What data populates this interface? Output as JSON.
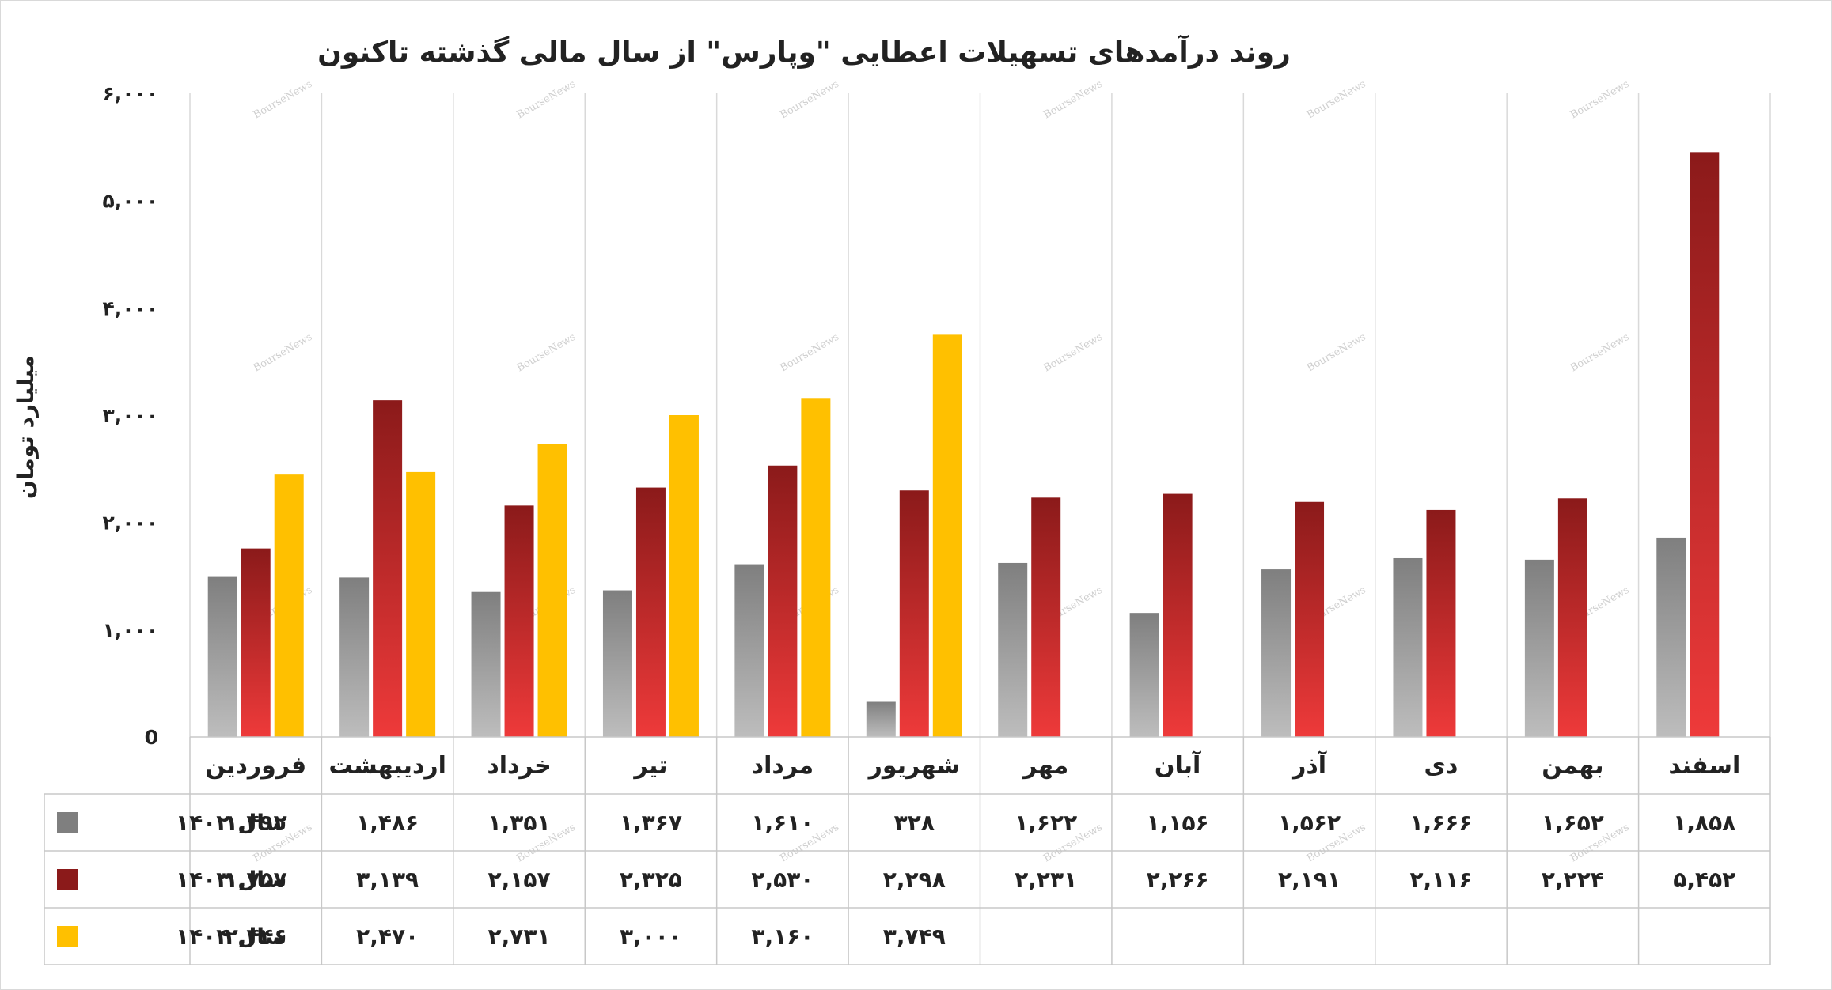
{
  "chart_data": {
    "type": "bar",
    "title": "روند درآمدهای تسهیلات اعطایی \"وپارس\" از سال مالی گذشته تاکنون",
    "ylabel": "میلیارد تومان",
    "xlabel": "",
    "ylim": [
      0,
      6000
    ],
    "yticks": [
      0,
      1000,
      2000,
      3000,
      4000,
      5000,
      6000
    ],
    "ytick_labels": [
      "0",
      "۱,۰۰۰",
      "۲,۰۰۰",
      "۳,۰۰۰",
      "۴,۰۰۰",
      "۵,۰۰۰",
      "۶,۰۰۰"
    ],
    "grid": true,
    "watermark": "BourseNews",
    "categories": [
      "فروردین",
      "اردیبهشت",
      "خرداد",
      "تیر",
      "مرداد",
      "شهریور",
      "مهر",
      "آبان",
      "آذر",
      "دی",
      "بهمن",
      "اسفند"
    ],
    "series": [
      {
        "name": "سال ۱۴۰۲",
        "color": "#7f7f7f",
        "color_light": "#bdbdbd",
        "values": [
          1492,
          1486,
          1351,
          1367,
          1610,
          328,
          1622,
          1156,
          1562,
          1666,
          1652,
          1858
        ],
        "labels": [
          "۱,۴۹۲",
          "۱,۴۸۶",
          "۱,۳۵۱",
          "۱,۳۶۷",
          "۱,۶۱۰",
          "۳۲۸",
          "۱,۶۲۲",
          "۱,۱۵۶",
          "۱,۵۶۲",
          "۱,۶۶۶",
          "۱,۶۵۲",
          "۱,۸۵۸"
        ]
      },
      {
        "name": "سال ۱۴۰۳",
        "color": "#8b1a1a",
        "color_light": "#ee3a3a",
        "values": [
          1757,
          3139,
          2157,
          2325,
          2530,
          2298,
          2231,
          2266,
          2191,
          2116,
          2224,
          5452
        ],
        "labels": [
          "۱,۷۵۷",
          "۳,۱۳۹",
          "۲,۱۵۷",
          "۲,۳۲۵",
          "۲,۵۳۰",
          "۲,۲۹۸",
          "۲,۲۳۱",
          "۲,۲۶۶",
          "۲,۱۹۱",
          "۲,۱۱۶",
          "۲,۲۲۴",
          "۵,۴۵۲"
        ]
      },
      {
        "name": "سال ۱۴۰۴",
        "color": "#ffc000",
        "color_light": "#ffc000",
        "values": [
          2446,
          2470,
          2731,
          3000,
          3160,
          3749,
          null,
          null,
          null,
          null,
          null,
          null
        ],
        "labels": [
          "۲,۴۴۶",
          "۲,۴۷۰",
          "۲,۷۳۱",
          "۳,۰۰۰",
          "۳,۱۶۰",
          "۳,۷۴۹",
          "",
          "",
          "",
          "",
          "",
          ""
        ]
      }
    ]
  }
}
